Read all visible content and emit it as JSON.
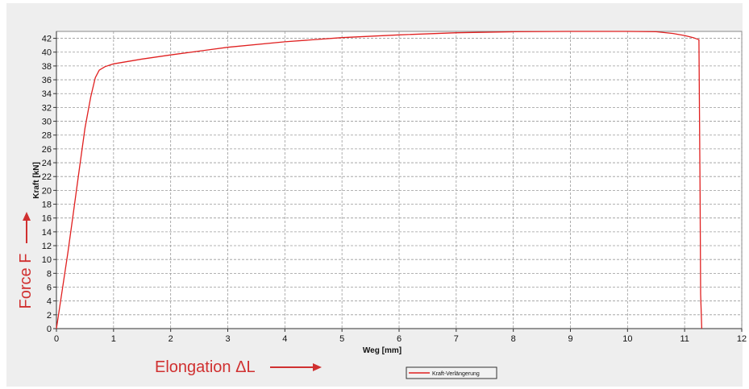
{
  "chart_data": {
    "type": "line",
    "xlabel": "Weg [mm]",
    "ylabel": "Kraft [kN]",
    "xlim": [
      0,
      12
    ],
    "ylim": [
      0,
      43
    ],
    "x_ticks": [
      0,
      1,
      2,
      3,
      4,
      5,
      6,
      7,
      8,
      9,
      10,
      11,
      12
    ],
    "y_ticks": [
      0,
      2,
      4,
      6,
      8,
      10,
      12,
      14,
      16,
      18,
      20,
      22,
      24,
      26,
      28,
      30,
      32,
      34,
      36,
      38,
      40,
      42
    ],
    "grid": true,
    "legend": {
      "placement": "bottom-center",
      "entries": [
        "Kraft-Verlängerung"
      ]
    },
    "series": [
      {
        "name": "Kraft-Verlängerung",
        "color": "#e02020",
        "x": [
          0,
          0.1,
          0.2,
          0.3,
          0.4,
          0.5,
          0.6,
          0.68,
          0.75,
          0.85,
          1.0,
          1.5,
          2,
          3,
          4,
          5,
          6,
          7,
          8,
          9,
          10,
          10.5,
          10.8,
          11.0,
          11.15,
          11.25,
          11.27,
          11.28,
          11.3
        ],
        "y": [
          0,
          5.5,
          11,
          17,
          23,
          29,
          33.5,
          36.3,
          37.4,
          37.9,
          38.3,
          39.0,
          39.6,
          40.7,
          41.5,
          42.1,
          42.5,
          42.8,
          42.95,
          43.0,
          43.0,
          42.95,
          42.7,
          42.4,
          42.1,
          41.8,
          20,
          5,
          0
        ]
      }
    ],
    "annotations": [
      {
        "text": "Force F",
        "color": "#d03030",
        "arrow": "up",
        "orientation": "vertical"
      },
      {
        "text": "Elongation ΔL",
        "color": "#d03030",
        "arrow": "right",
        "orientation": "horizontal"
      }
    ]
  }
}
